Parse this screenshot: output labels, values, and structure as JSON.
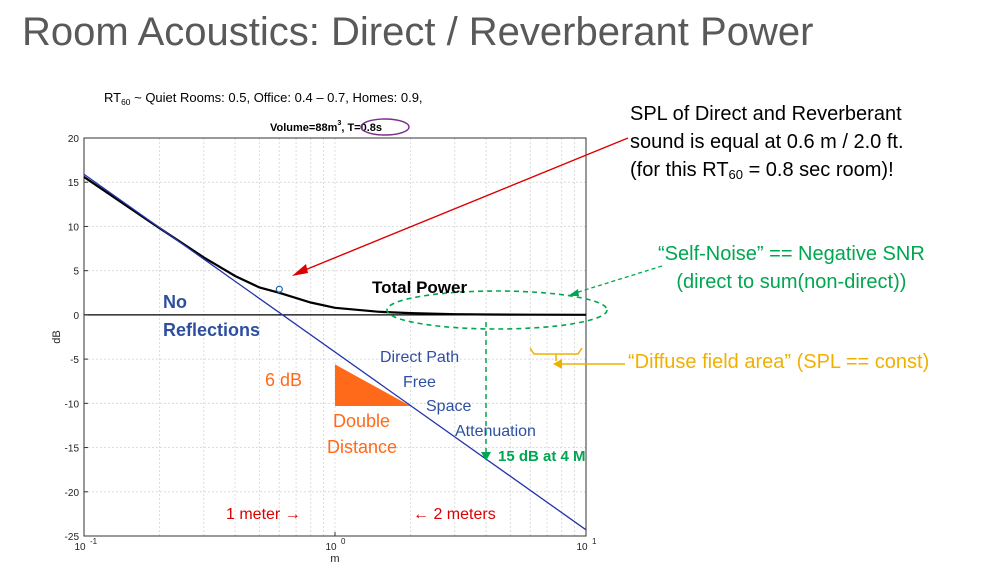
{
  "slide": {
    "title": "Room Acoustics: Direct / Reverberant Power",
    "subtitle_rt_prefix": "RT",
    "subtitle_rt_sub": "60",
    "subtitle_rt_rest": " ~ Quiet Rooms: 0.5, Office: 0.4 – 0.7, Homes: 0.9,",
    "subtitle_volume": "Volume=88m",
    "subtitle_volume_sup": "3",
    "subtitle_t": ", T=0.8s",
    "callout_line1": "SPL of Direct and Reverberant",
    "callout_line2": "sound is equal at 0.6 m / 2.0 ft.",
    "callout_line3_pre": "(for this RT",
    "callout_line3_sub": "60",
    "callout_line3_post": " = 0.8 sec room)!",
    "self_noise_line1": "“Self-Noise” == Negative SNR",
    "self_noise_line2": "(direct to sum(non-direct))",
    "diffuse_field": "“Diffuse field area” (SPL == const)"
  },
  "chart_data": {
    "type": "line",
    "xscale": "log",
    "xlim": [
      0.1,
      10
    ],
    "ylim": [
      -25,
      20
    ],
    "xlabel": "m",
    "ylabel": "dB",
    "grid": true,
    "yticks": [
      "20",
      "15",
      "10",
      "5",
      "0",
      "-5",
      "-10",
      "-15",
      "-20",
      "-25"
    ],
    "xticks": [
      {
        "base": "10",
        "exp": "-1",
        "value": 0.1
      },
      {
        "base": "10",
        "exp": "0",
        "value": 1
      },
      {
        "base": "10",
        "exp": "1",
        "value": 10
      }
    ],
    "series": [
      {
        "name": "Total Power",
        "color": "#000000",
        "x": [
          0.1,
          0.15,
          0.2,
          0.3,
          0.4,
          0.5,
          0.6,
          0.8,
          1.0,
          1.5,
          2.0,
          3.0,
          4.0,
          6.0,
          10.0
        ],
        "y": [
          15.6,
          12.2,
          9.8,
          6.5,
          4.4,
          3.1,
          2.5,
          1.4,
          0.8,
          0.35,
          0.2,
          0.08,
          0.04,
          0.02,
          0.01
        ]
      },
      {
        "name": "No Reflections",
        "color": "#2233aa",
        "x": [
          0.1,
          10.0
        ],
        "y": [
          15.9,
          -24.3
        ]
      }
    ],
    "zero_line": 0,
    "marker": {
      "x": 0.6,
      "y": 2.9,
      "color": "#2266aa"
    },
    "triangle": {
      "x": [
        1.0,
        2.0
      ],
      "y": [
        -5.6,
        -10.3
      ],
      "color": "#ff6a1a"
    },
    "annotations": {
      "total_power": "Total Power",
      "no_reflections_1": "No",
      "no_reflections_2": "Reflections",
      "direct_path_1": "Direct Path",
      "direct_path_2": "Free",
      "direct_path_3": "Space",
      "direct_path_4": "Attenuation",
      "six_db": "6 dB",
      "double_1": "Double",
      "double_2": "Distance",
      "fifteen_db": "15 dB at 4 M",
      "one_meter": "1 meter →",
      "two_meters": "← 2 meters"
    }
  },
  "colors": {
    "title": "#595959",
    "blue_text": "#2e4fa0",
    "orange": "#ff6a1a",
    "green": "#00a650",
    "yellow": "#f0b000",
    "red": "#dd0000",
    "purple": "#7a2d8c"
  }
}
